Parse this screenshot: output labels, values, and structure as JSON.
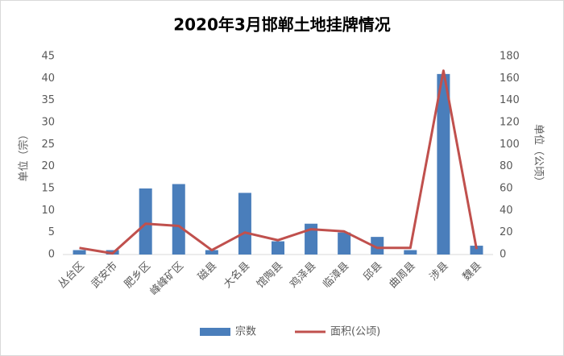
{
  "chart_data": {
    "type": "combo",
    "title": "2020年3月邯郸土地挂牌情况",
    "y_label": "单位（宗）",
    "y2_label": "单位（公顷）",
    "categories": [
      "丛台区",
      "武安市",
      "肥乡区",
      "峰峰矿区",
      "磁县",
      "大名县",
      "馆陶县",
      "鸡泽县",
      "临漳县",
      "邱县",
      "曲周县",
      "涉县",
      "魏县"
    ],
    "series": [
      {
        "name": "宗数",
        "type": "bar",
        "color": "#4a7ebb",
        "values": [
          1,
          1,
          15,
          16,
          1,
          14,
          3,
          7,
          5,
          4,
          1,
          41,
          2
        ]
      },
      {
        "name": "面积(公顷)",
        "type": "line",
        "color": "#c0504d",
        "axis": "y2",
        "values": [
          6,
          1,
          28,
          26,
          4,
          20,
          13,
          23,
          21,
          6,
          6,
          167,
          5
        ]
      }
    ],
    "ylim": [
      0,
      45
    ],
    "yticks": [
      0,
      5,
      10,
      15,
      20,
      25,
      30,
      35,
      40,
      45
    ],
    "y2lim": [
      0,
      180
    ],
    "y2ticks": [
      0,
      20,
      40,
      60,
      80,
      100,
      120,
      140,
      160,
      180
    ],
    "legend": "bottom"
  }
}
